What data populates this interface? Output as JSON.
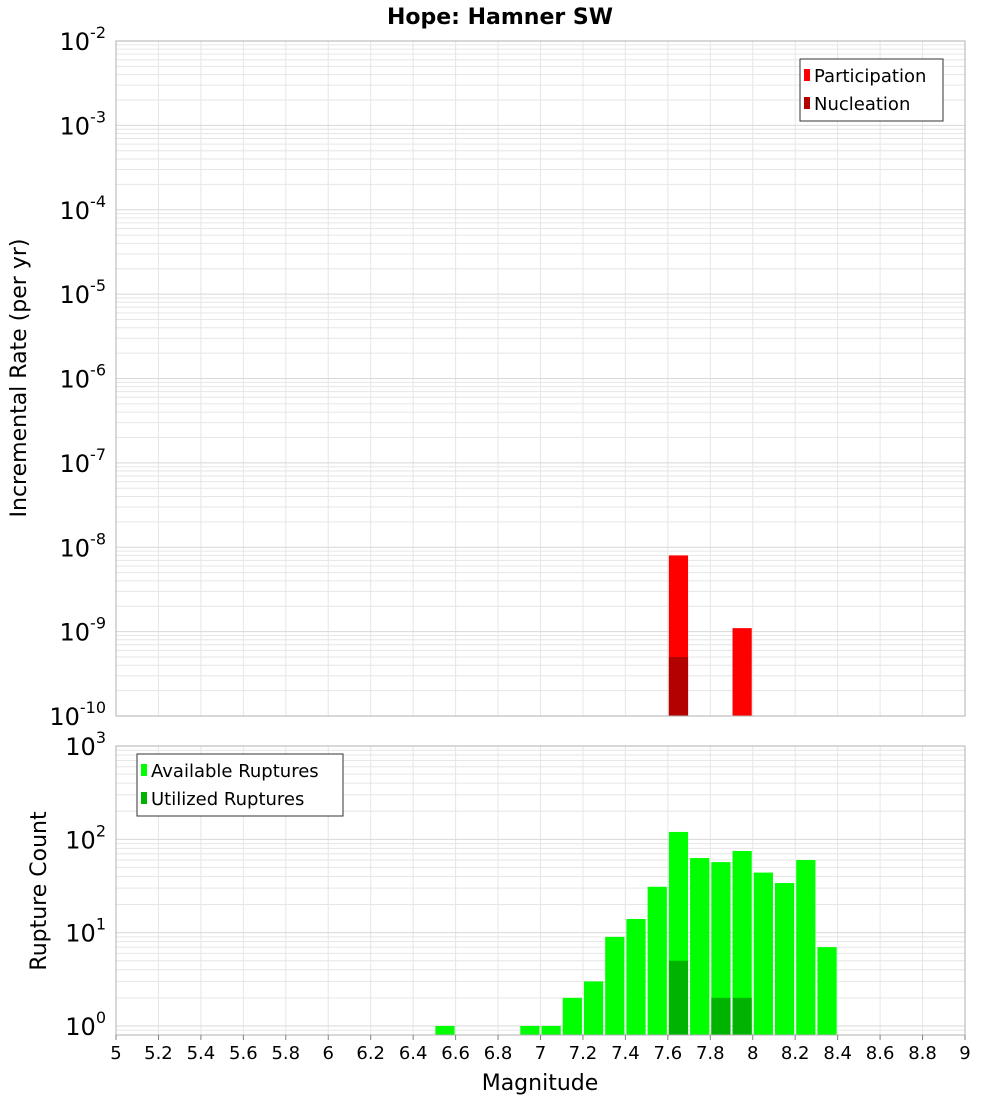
{
  "title": "Hope: Hamner SW",
  "colors": {
    "participation": "#ff0000",
    "nucleation": "#b30000",
    "available": "#00ff00",
    "utilized": "#00b300",
    "grid": "#e6e6e6",
    "frame": "#b0b0b0"
  },
  "chart_data": [
    {
      "type": "bar",
      "panel": "top",
      "title": "Hope: Hamner SW",
      "xlabel": "",
      "ylabel": "Incremental Rate (per yr)",
      "yscale": "log",
      "ylim": [
        1e-10,
        0.01
      ],
      "xlim": [
        5,
        9
      ],
      "bar_width": 0.1,
      "legend_position": "top-right",
      "grid": true,
      "series": [
        {
          "name": "Participation",
          "color": "#ff0000",
          "x": [
            7.65,
            7.95
          ],
          "values": [
            8e-09,
            1.1e-09
          ]
        },
        {
          "name": "Nucleation",
          "color": "#b30000",
          "x": [
            7.65
          ],
          "values": [
            5e-10
          ]
        }
      ]
    },
    {
      "type": "bar",
      "panel": "bottom",
      "xlabel": "Magnitude",
      "ylabel": "Rupture Count",
      "yscale": "log",
      "ylim": [
        0.8,
        1000
      ],
      "xlim": [
        5,
        9
      ],
      "bar_width": 0.1,
      "legend_position": "top-left",
      "grid": true,
      "x_ticks": [
        "5",
        "5.2",
        "5.4",
        "5.6",
        "5.8",
        "6",
        "6.2",
        "6.4",
        "6.6",
        "6.8",
        "7",
        "7.2",
        "7.4",
        "7.6",
        "7.8",
        "8",
        "8.2",
        "8.4",
        "8.6",
        "8.8",
        "9"
      ],
      "series": [
        {
          "name": "Available Ruptures",
          "color": "#00ff00",
          "x": [
            6.55,
            6.95,
            7.05,
            7.15,
            7.25,
            7.35,
            7.45,
            7.55,
            7.65,
            7.75,
            7.85,
            7.95,
            8.05,
            8.15,
            8.25,
            8.35
          ],
          "values": [
            1,
            1,
            1,
            2,
            3,
            9,
            14,
            31,
            120,
            63,
            57,
            75,
            44,
            34,
            60,
            7
          ]
        },
        {
          "name": "Utilized Ruptures",
          "color": "#00b300",
          "x": [
            7.65,
            7.85,
            7.95
          ],
          "values": [
            5,
            2,
            2
          ]
        }
      ]
    }
  ]
}
